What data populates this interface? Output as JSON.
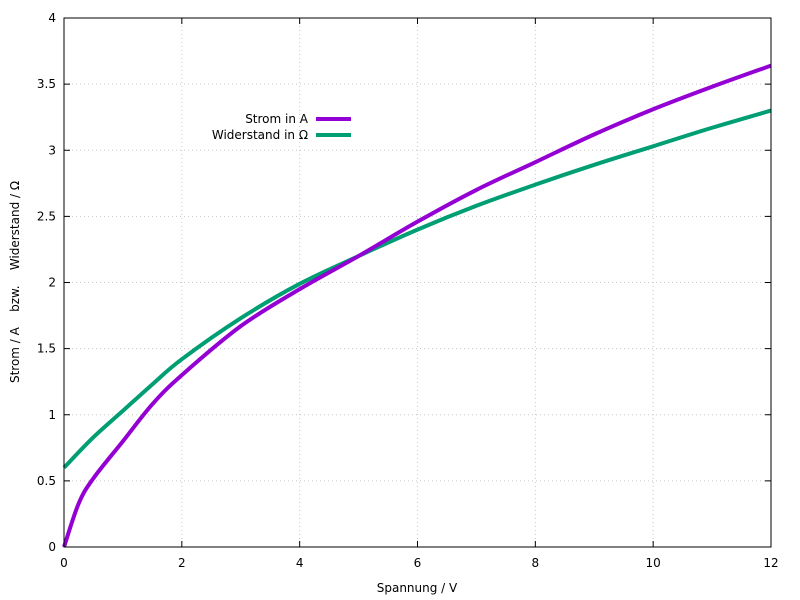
{
  "chart_data": {
    "type": "line",
    "xlabel": "Spannung / V",
    "ylabel": "Strom / A    bzw.    Widerstand / Ω",
    "xlim": [
      0,
      12
    ],
    "ylim": [
      0,
      4
    ],
    "xticks": [
      0,
      2,
      4,
      6,
      8,
      10,
      12
    ],
    "xtick_labels": [
      "0",
      "2",
      "4",
      "6",
      "8",
      "10",
      "12"
    ],
    "yticks": [
      0,
      0.5,
      1,
      1.5,
      2,
      2.5,
      3,
      3.5,
      4
    ],
    "ytick_labels": [
      "0",
      "0.5",
      "1",
      "1.5",
      "2",
      "2.5",
      "3",
      "3.5",
      "4"
    ],
    "grid": true,
    "legend_position": "top-left",
    "series": [
      {
        "name": "Strom in A",
        "color": "#9400d3",
        "x": [
          0,
          0.25,
          0.5,
          1,
          1.5,
          2,
          3,
          4,
          5,
          6,
          7,
          8,
          9,
          10,
          11,
          12
        ],
        "y": [
          0,
          0.33,
          0.52,
          0.8,
          1.08,
          1.3,
          1.67,
          1.95,
          2.2,
          2.46,
          2.7,
          2.91,
          3.12,
          3.31,
          3.48,
          3.64
        ]
      },
      {
        "name": "Widerstand in Ω",
        "color": "#009e73",
        "x": [
          0,
          0.5,
          1,
          1.5,
          2,
          3,
          4,
          5,
          6,
          7,
          8,
          9,
          10,
          11,
          12
        ],
        "y": [
          0.6,
          0.83,
          1.03,
          1.23,
          1.42,
          1.73,
          1.99,
          2.2,
          2.4,
          2.58,
          2.74,
          2.89,
          3.03,
          3.17,
          3.3
        ]
      }
    ]
  }
}
